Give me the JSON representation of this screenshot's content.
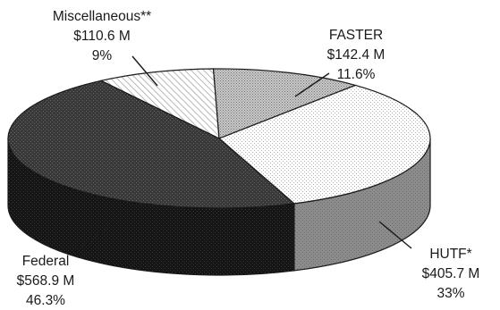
{
  "chart_data": {
    "type": "pie",
    "title": "",
    "slices": [
      {
        "name": "Miscellaneous**",
        "value": 110.6,
        "value_label": "$110.6 M",
        "percent": 9,
        "percent_label": "9%",
        "pattern": "diagonal-hatch"
      },
      {
        "name": "FASTER",
        "value": 142.4,
        "value_label": "$142.4 M",
        "percent": 11.6,
        "percent_label": "11.6%",
        "pattern": "dense-dots"
      },
      {
        "name": "HUTF*",
        "value": 405.7,
        "value_label": "$405.7 M",
        "percent": 33,
        "percent_label": "33%",
        "pattern": "sparse-dots"
      },
      {
        "name": "Federal",
        "value": 568.9,
        "value_label": "$568.9 M",
        "percent": 46.3,
        "percent_label": "46.3%",
        "pattern": "dark-dots"
      }
    ]
  }
}
